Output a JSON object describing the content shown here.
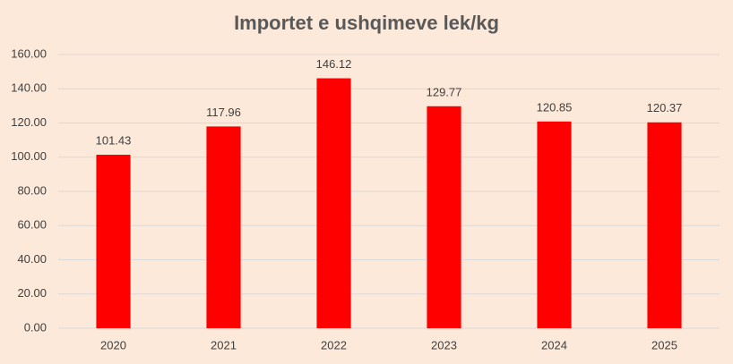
{
  "chart_data": {
    "type": "bar",
    "title": "Importet e ushqimeve lek/kg",
    "categories": [
      "2020",
      "2021",
      "2022",
      "2023",
      "2024",
      "2025"
    ],
    "values": [
      101.43,
      117.96,
      146.12,
      129.77,
      120.85,
      120.37
    ],
    "color": "#ff0000",
    "ylim": [
      0,
      160
    ],
    "yticks": [
      {
        "value": 0,
        "label": "0.00"
      },
      {
        "value": 20,
        "label": "20.00"
      },
      {
        "value": 40,
        "label": "40.00"
      },
      {
        "value": 60,
        "label": "60.00"
      },
      {
        "value": 80,
        "label": "80.00"
      },
      {
        "value": 100,
        "label": "100.00"
      },
      {
        "value": 120,
        "label": "120.00"
      },
      {
        "value": 140,
        "label": "140.00"
      },
      {
        "value": 160,
        "label": "160.00"
      }
    ],
    "grid": true
  }
}
